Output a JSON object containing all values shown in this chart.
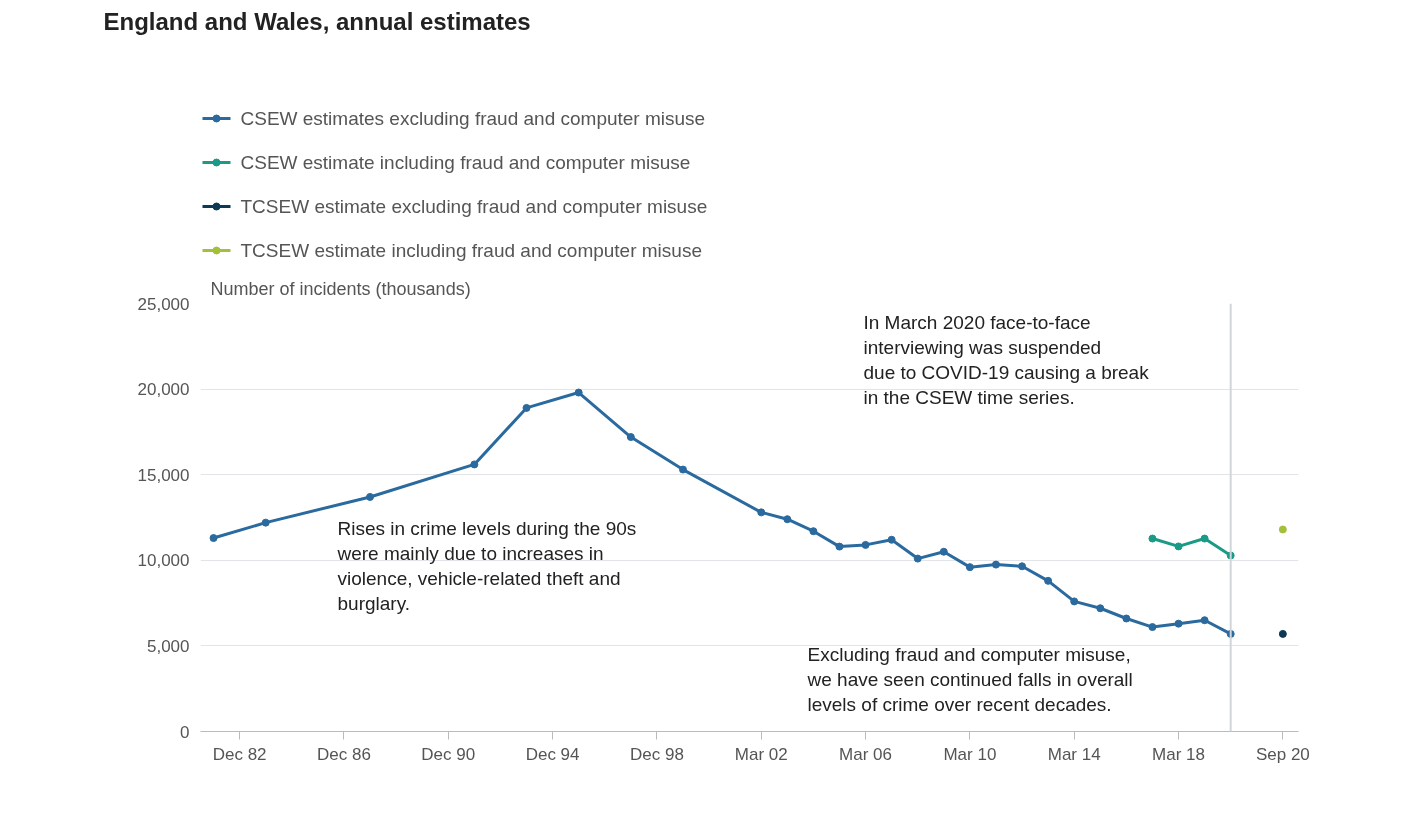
{
  "chart_data": {
    "type": "line",
    "title": "England and Wales, annual estimates",
    "ylabel": "Number of incidents (thousands)",
    "categories": [
      null,
      "Dec 82",
      null,
      null,
      null,
      "Dec 86",
      null,
      null,
      null,
      "Dec 90",
      null,
      null,
      null,
      "Dec 94",
      null,
      null,
      null,
      "Dec 98",
      null,
      null,
      null,
      "Mar 02",
      null,
      null,
      null,
      "Mar 06",
      null,
      null,
      null,
      "Mar 10",
      null,
      null,
      null,
      "Mar 14",
      null,
      null,
      null,
      "Mar 18",
      null,
      null,
      null,
      "Sep 20"
    ],
    "ylim": [
      0,
      25000
    ],
    "yticks": [
      {
        "value": 0,
        "label": "0"
      },
      {
        "value": 5000,
        "label": "5,000"
      },
      {
        "value": 10000,
        "label": "10,000"
      },
      {
        "value": 15000,
        "label": "15,000"
      },
      {
        "value": 20000,
        "label": "20,000"
      },
      {
        "value": 25000,
        "label": "25,000"
      }
    ],
    "grid": "y",
    "legend": "top left",
    "marker": "circle",
    "line_style": "solid",
    "series": [
      {
        "name": "CSEW estimates excluding fraud and computer misuse",
        "color": "#2a6a9e",
        "values": [
          11300,
          null,
          12200,
          null,
          null,
          null,
          13700,
          null,
          null,
          null,
          15600,
          null,
          18900,
          null,
          19800,
          null,
          17200,
          null,
          15300,
          null,
          null,
          12800,
          12400,
          11700,
          10800,
          10900,
          11200,
          10100,
          10500,
          9600,
          9750,
          9650,
          8800,
          7600,
          7200,
          6600,
          6100,
          6300,
          6500,
          5700,
          null,
          null
        ]
      },
      {
        "name": "CSEW estimate including fraud and computer misuse",
        "color": "#1a9a87",
        "values": [
          null,
          null,
          null,
          null,
          null,
          null,
          null,
          null,
          null,
          null,
          null,
          null,
          null,
          null,
          null,
          null,
          null,
          null,
          null,
          null,
          null,
          null,
          null,
          null,
          null,
          null,
          null,
          null,
          null,
          null,
          null,
          null,
          null,
          null,
          null,
          null,
          11270,
          10810,
          11270,
          10280,
          null,
          null
        ]
      },
      {
        "name": "TCSEW estimate excluding fraud and computer misuse",
        "color": "#0c3a56",
        "values": [
          null,
          null,
          null,
          null,
          null,
          null,
          null,
          null,
          null,
          null,
          null,
          null,
          null,
          null,
          null,
          null,
          null,
          null,
          null,
          null,
          null,
          null,
          null,
          null,
          null,
          null,
          null,
          null,
          null,
          null,
          null,
          null,
          null,
          null,
          null,
          null,
          null,
          null,
          null,
          null,
          null,
          5700
        ]
      },
      {
        "name": "TCSEW estimate including fraud and computer misuse",
        "color": "#a3c03a",
        "values": [
          null,
          null,
          null,
          null,
          null,
          null,
          null,
          null,
          null,
          null,
          null,
          null,
          null,
          null,
          null,
          null,
          null,
          null,
          null,
          null,
          null,
          null,
          null,
          null,
          null,
          null,
          null,
          null,
          null,
          null,
          null,
          null,
          null,
          null,
          null,
          null,
          null,
          null,
          null,
          null,
          null,
          11800
        ]
      }
    ],
    "annotations": [
      "In March 2020 face-to-face\ninterviewing was suspended\ndue to COVID-19 causing a break\nin the CSEW time series.",
      "Rises in crime levels during the 90s\nwere mainly due to increases in\nviolence, vehicle-related theft and\nburglary.",
      "Excluding fraud and computer misuse,\nwe have seen continued falls in overall\nlevels of crime over recent decades."
    ]
  }
}
